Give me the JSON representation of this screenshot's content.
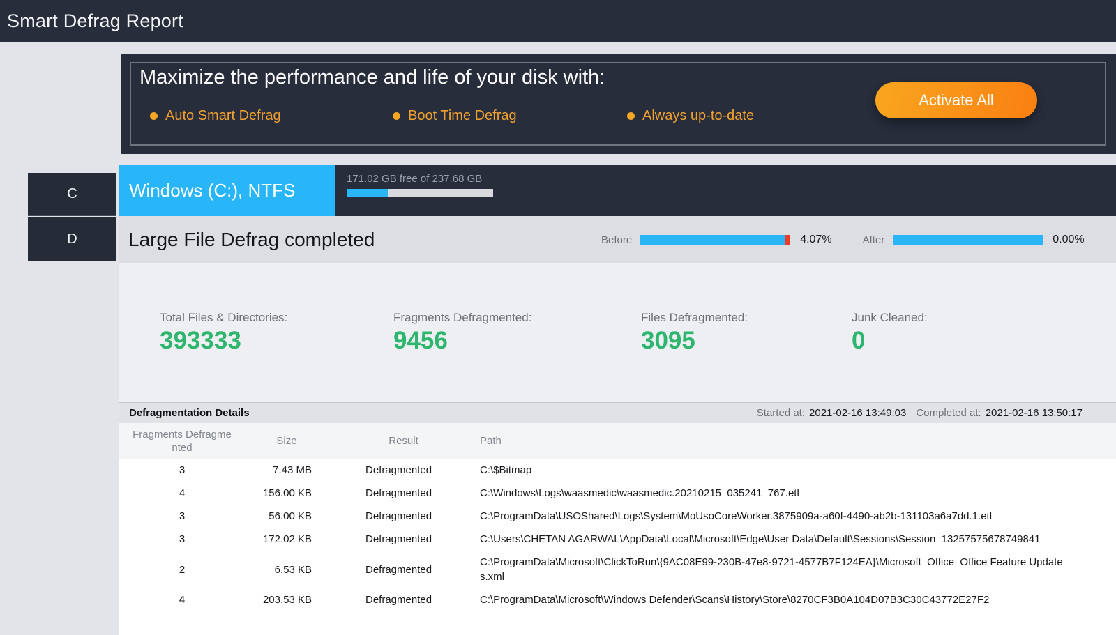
{
  "title": "Smart Defrag Report",
  "banner": {
    "headline": "Maximize the performance and life of your disk with:",
    "features": [
      "Auto Smart Defrag",
      "Boot Time Defrag",
      "Always up-to-date"
    ],
    "button_label": "Activate All"
  },
  "drives": [
    {
      "letter": "C",
      "active": true
    },
    {
      "letter": "D",
      "active": false
    }
  ],
  "drive_header": {
    "name": "Windows (C:), NTFS",
    "free_space": "171.02 GB free of 237.68 GB",
    "used_percent": 28
  },
  "status": {
    "title": "Large File Defrag completed",
    "before_label": "Before",
    "before_value": "4.07%",
    "after_label": "After",
    "after_value": "0.00%"
  },
  "stats": [
    {
      "label": "Total Files & Directories:",
      "value": "393333"
    },
    {
      "label": "Fragments Defragmented:",
      "value": "9456"
    },
    {
      "label": "Files Defragmented:",
      "value": "3095"
    },
    {
      "label": "Junk Cleaned:",
      "value": "0"
    }
  ],
  "details": {
    "title": "Defragmentation Details",
    "started_label": "Started at:",
    "started_value": "2021-02-16 13:49:03",
    "completed_label": "Completed at:",
    "completed_value": "2021-02-16 13:50:17",
    "columns": [
      "Fragments Defragmented",
      "Size",
      "Result",
      "Path"
    ],
    "rows": [
      {
        "fragments": "3",
        "size": "7.43 MB",
        "result": "Defragmented",
        "path": "C:\\$Bitmap"
      },
      {
        "fragments": "4",
        "size": "156.00 KB",
        "result": "Defragmented",
        "path": "C:\\Windows\\Logs\\waasmedic\\waasmedic.20210215_035241_767.etl"
      },
      {
        "fragments": "3",
        "size": "56.00 KB",
        "result": "Defragmented",
        "path": "C:\\ProgramData\\USOShared\\Logs\\System\\MoUsoCoreWorker.3875909a-a60f-4490-ab2b-131103a6a7dd.1.etl"
      },
      {
        "fragments": "3",
        "size": "172.02 KB",
        "result": "Defragmented",
        "path": "C:\\Users\\CHETAN AGARWAL\\AppData\\Local\\Microsoft\\Edge\\User Data\\Default\\Sessions\\Session_13257575678749841"
      },
      {
        "fragments": "2",
        "size": "6.53 KB",
        "result": "Defragmented",
        "path": "C:\\ProgramData\\Microsoft\\ClickToRun\\{9AC08E99-230B-47e8-9721-4577B7F124EA}\\Microsoft_Office_Office Feature Updates.xml"
      },
      {
        "fragments": "4",
        "size": "203.53 KB",
        "result": "Defragmented",
        "path": "C:\\ProgramData\\Microsoft\\Windows Defender\\Scans\\History\\Store\\8270CF3B0A104D07B3C30C43772E27F2"
      }
    ]
  },
  "colors": {
    "dark_navy": "#272d3b",
    "accent_blue": "#29b6f8",
    "accent_green": "#2eb56e",
    "accent_orange": "#f2a12f",
    "alert_red": "#ee3a28",
    "button_gradient_start": "#f9a61f",
    "button_gradient_end": "#fa7f12"
  }
}
